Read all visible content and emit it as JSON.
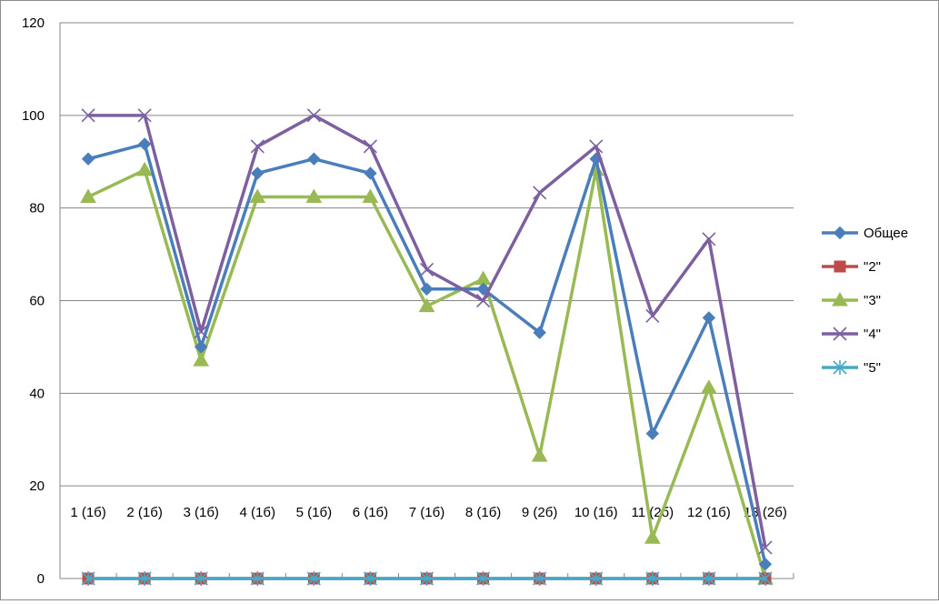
{
  "chart_data": {
    "type": "line",
    "title": "",
    "xlabel": "",
    "ylabel": "",
    "ylim": [
      0,
      120
    ],
    "yticks": [
      0,
      20,
      40,
      60,
      80,
      100,
      120
    ],
    "grid": true,
    "legend_position": "right",
    "categories": [
      "1 (1б)",
      "2 (1б)",
      "3 (1б)",
      "4 (1б)",
      "5 (1б)",
      "6 (1б)",
      "7 (1б)",
      "8 (1б)",
      "9 (2б)",
      "10 (1б)",
      "11 (2б)",
      "12 (1б)",
      "13 (2б)"
    ],
    "series": [
      {
        "name": "Общее",
        "color": "#4a7ebb",
        "marker": "diamond",
        "values": [
          90.6,
          93.8,
          50,
          87.5,
          90.6,
          87.5,
          62.5,
          62.5,
          53.1,
          90.6,
          31.3,
          56.3,
          3.1
        ]
      },
      {
        "name": "\"2\"",
        "color": "#be4b48",
        "marker": "square",
        "values": [
          0,
          0,
          0,
          0,
          0,
          0,
          0,
          0,
          0,
          0,
          0,
          0,
          0
        ]
      },
      {
        "name": "\"3\"",
        "color": "#98b954",
        "marker": "triangle",
        "values": [
          82.4,
          88.2,
          47.1,
          82.4,
          82.4,
          82.4,
          58.8,
          64.7,
          26.5,
          88.2,
          8.8,
          41.2,
          0
        ]
      },
      {
        "name": "\"4\"",
        "color": "#7d60a0",
        "marker": "x",
        "values": [
          100,
          100,
          53.3,
          93.3,
          100,
          93.3,
          66.7,
          60,
          83.3,
          93.3,
          56.7,
          73.3,
          6.7
        ]
      },
      {
        "name": "\"5\"",
        "color": "#46aac5",
        "marker": "star",
        "values": [
          0,
          0,
          0,
          0,
          0,
          0,
          0,
          0,
          0,
          0,
          0,
          0,
          0
        ]
      }
    ]
  }
}
